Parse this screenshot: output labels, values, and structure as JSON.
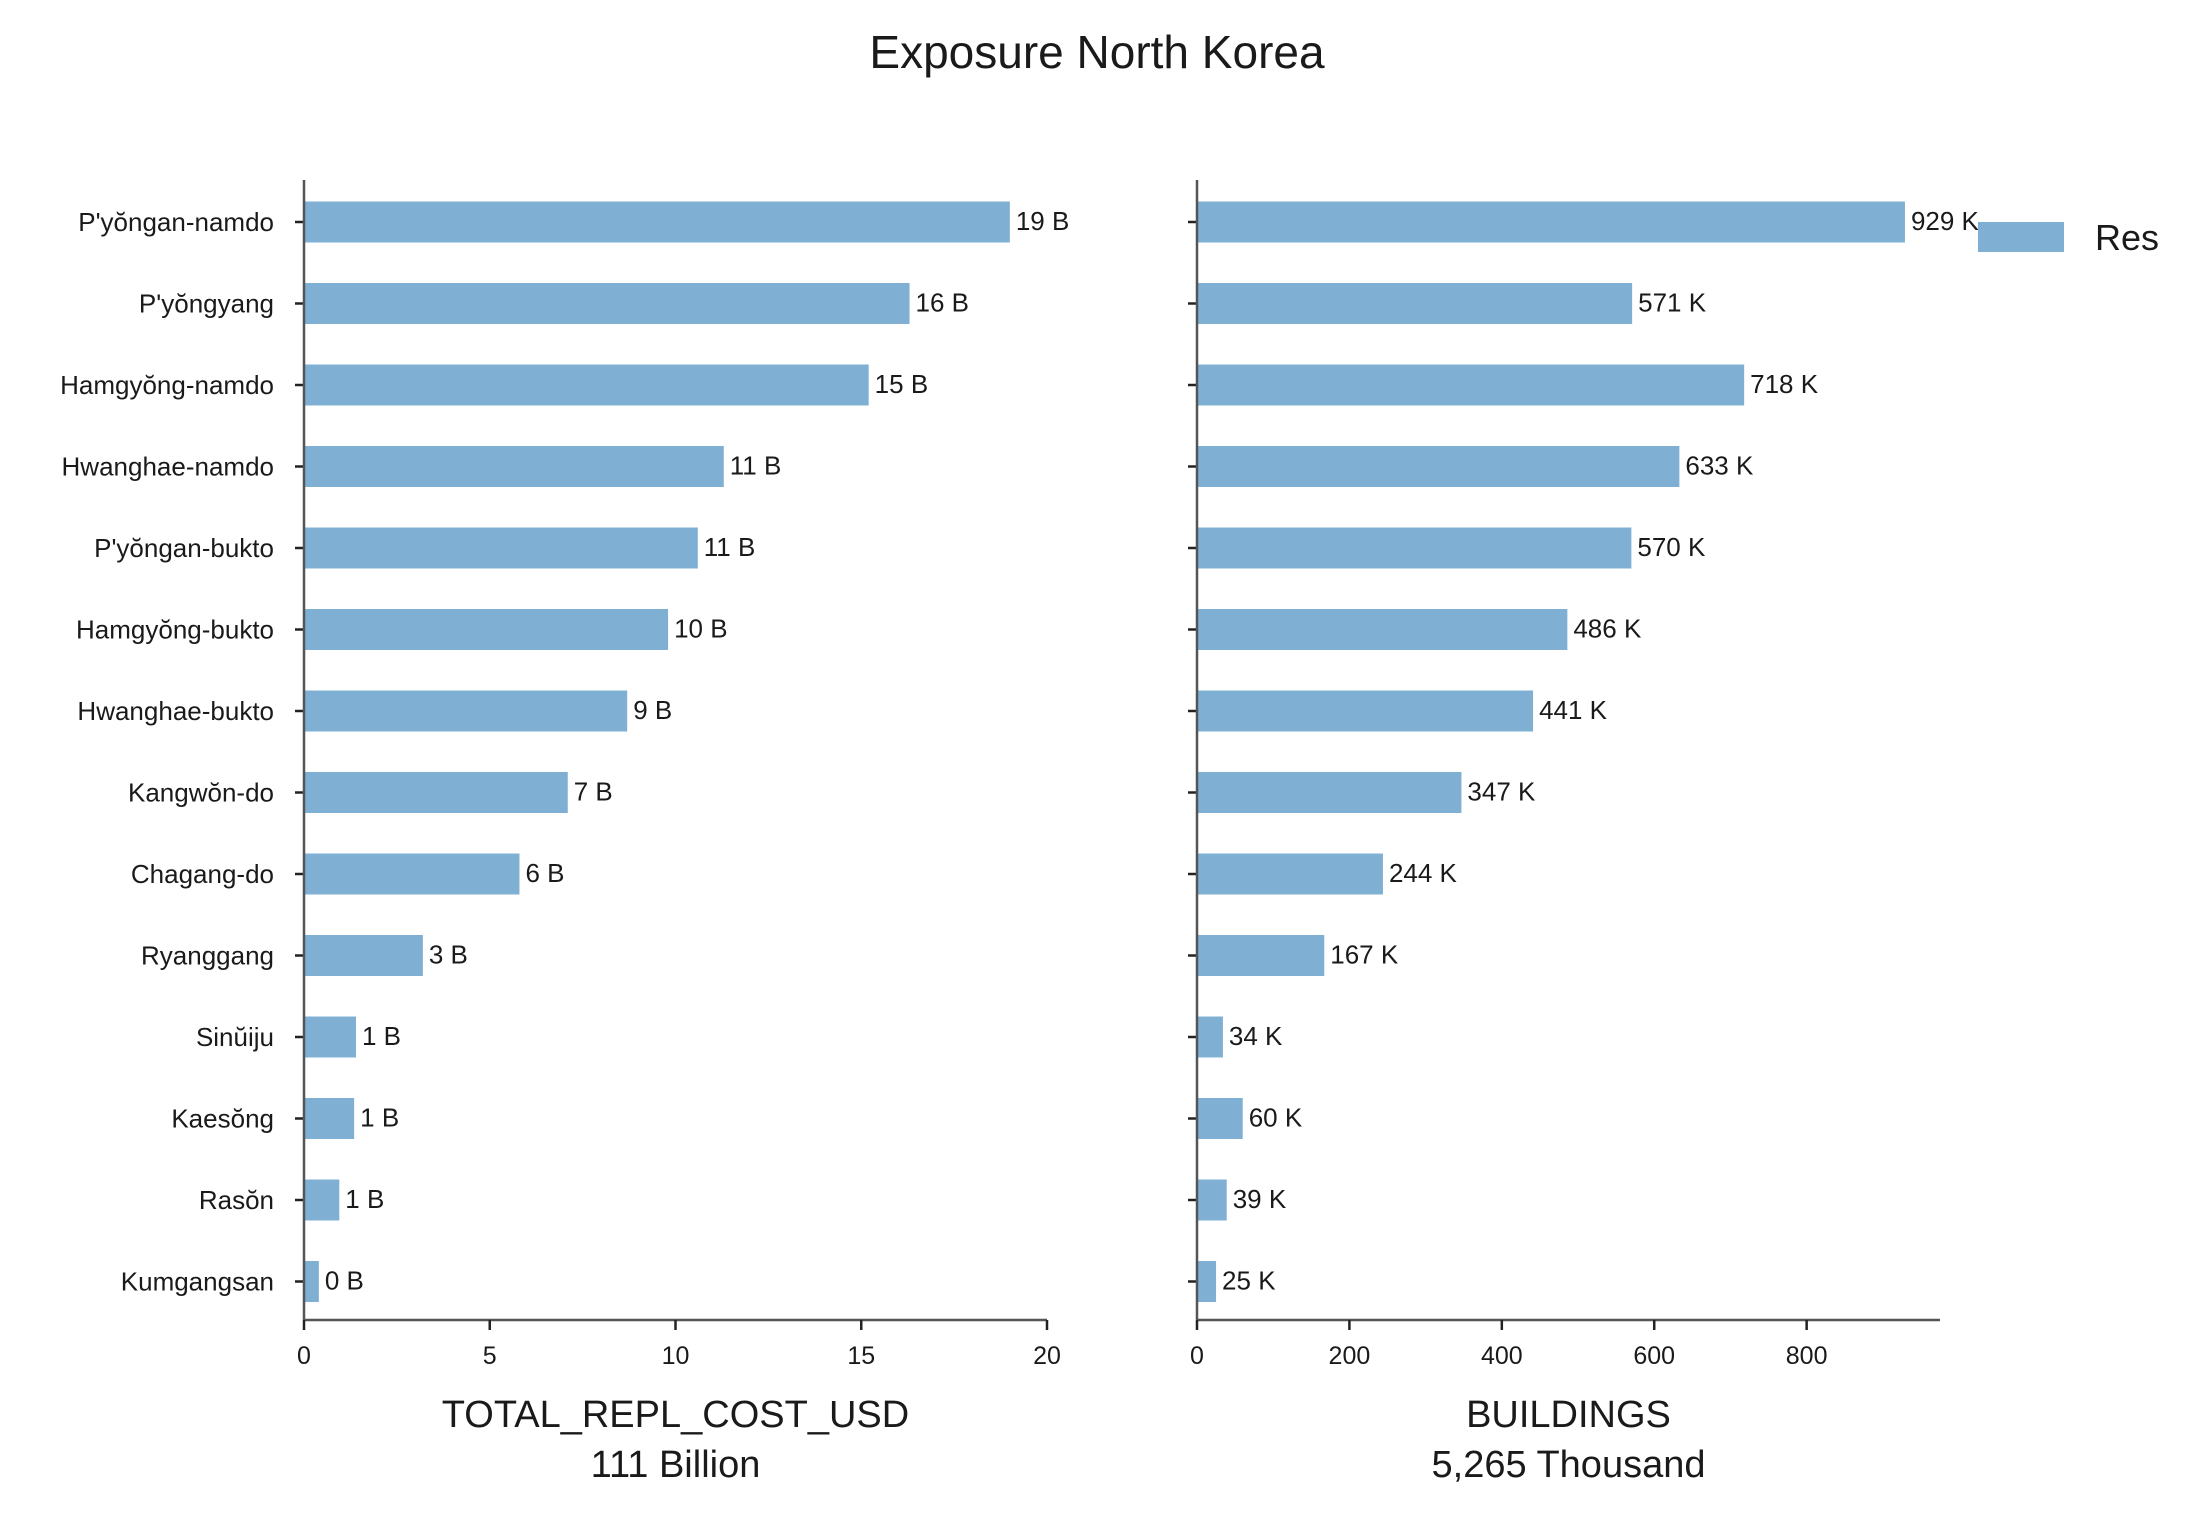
{
  "chart_data": {
    "type": "bar",
    "orientation": "horizontal",
    "title": "Exposure North Korea",
    "bar_color": "#7fb0d4",
    "legend": {
      "entries": [
        "Res"
      ],
      "placement": "top-right"
    },
    "grid": false,
    "categories": [
      "P'yŏngan-namdo",
      "P'yŏngyang",
      "Hamgyŏng-namdo",
      "Hwanghae-namdo",
      "P'yŏngan-bukto",
      "Hamgyŏng-bukto",
      "Hwanghae-bukto",
      "Kangwŏn-do",
      "Chagang-do",
      "Ryanggang",
      "Sinŭiju",
      "Kaesŏng",
      "Rasŏn",
      "Kumgangsan"
    ],
    "panels": [
      {
        "xlabel": "TOTAL_REPL_COST_USD",
        "xlabel_sub": "111 Billion",
        "xlim": [
          0,
          20
        ],
        "xticks": [
          "0",
          "5",
          "10",
          "15",
          "20"
        ],
        "values": [
          19.0,
          16.3,
          15.2,
          11.3,
          10.6,
          9.8,
          8.7,
          7.1,
          5.8,
          3.2,
          1.4,
          1.35,
          0.95,
          0.4
        ],
        "data_labels": [
          "19 B",
          "16 B",
          "15 B",
          "11 B",
          "11 B",
          "10 B",
          "9 B",
          "7 B",
          "6 B",
          "3 B",
          "1 B",
          "1 B",
          "1 B",
          "0 B"
        ]
      },
      {
        "xlabel": "BUILDINGS",
        "xlabel_sub": "5,265 Thousand",
        "xlim": [
          0,
          975
        ],
        "xticks": [
          "0",
          "200",
          "400",
          "600",
          "800"
        ],
        "values": [
          929,
          571,
          718,
          633,
          570,
          486,
          441,
          347,
          244,
          167,
          34,
          60,
          39,
          25
        ],
        "data_labels": [
          "929 K",
          "571 K",
          "718 K",
          "633 K",
          "570 K",
          "486 K",
          "441 K",
          "347 K",
          "244 K",
          "167 K",
          "34 K",
          "60 K",
          "39 K",
          "25 K"
        ]
      }
    ]
  }
}
